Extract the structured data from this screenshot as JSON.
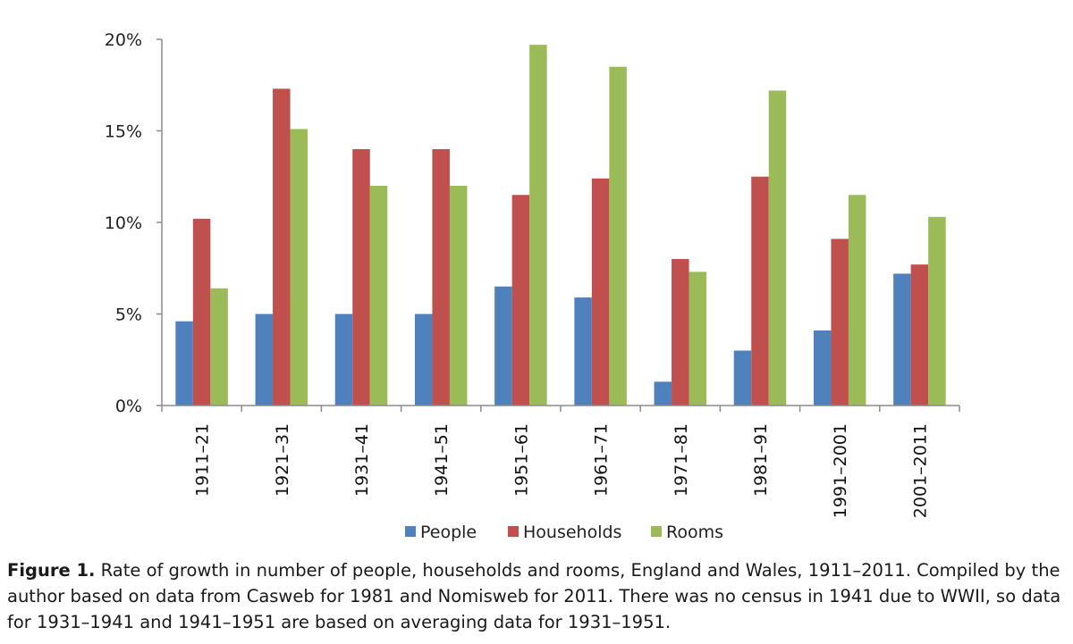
{
  "chart_data": {
    "type": "bar",
    "categories": [
      "1911–21",
      "1921–31",
      "1931–41",
      "1941–51",
      "1951–61",
      "1961–71",
      "1971–81",
      "1981–91",
      "1991–2001",
      "2001–2011"
    ],
    "series": [
      {
        "name": "People",
        "color": "#4f81bd",
        "values": [
          4.6,
          5.0,
          5.0,
          5.0,
          6.5,
          5.9,
          1.3,
          3.0,
          4.1,
          7.2
        ]
      },
      {
        "name": "Households",
        "color": "#c0504d",
        "values": [
          10.2,
          17.3,
          14.0,
          14.0,
          11.5,
          12.4,
          8.0,
          12.5,
          9.1,
          7.7
        ]
      },
      {
        "name": "Rooms",
        "color": "#9bbb59",
        "values": [
          6.4,
          15.1,
          12.0,
          12.0,
          19.7,
          18.5,
          7.3,
          17.2,
          11.5,
          10.3
        ]
      }
    ],
    "ylim": [
      0,
      20
    ],
    "yticks": [
      0,
      5,
      10,
      15,
      20
    ],
    "ytick_labels": [
      "0%",
      "5%",
      "10%",
      "15%",
      "20%"
    ],
    "legend_position": "bottom",
    "grid": false
  },
  "caption": {
    "label": "Figure 1.",
    "text": " Rate of growth in number of people, households and rooms, England and Wales, 1911–2011. Compiled by the author based on data from Casweb for 1981 and Nomisweb for 2011. There was no census in 1941 due to WWII, so data for 1931–1941 and 1941–1951 are based on averaging data for 1931–1951."
  }
}
